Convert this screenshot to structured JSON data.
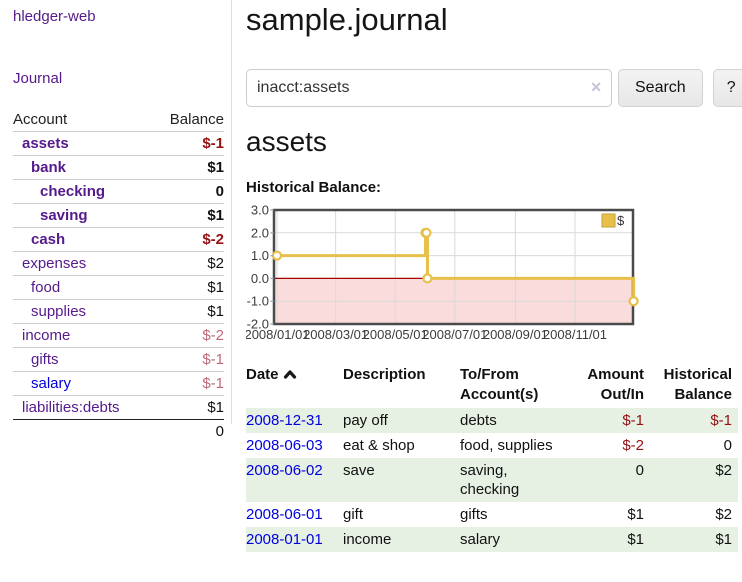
{
  "colors": {
    "link_purple": "#551a8b",
    "link_blue": "#0000dd",
    "negative_dark": "#941114",
    "negative_light": "#c0697a",
    "row_green": "#e6f0e3",
    "chart_line": "#e7c04a",
    "chart_zero_line": "#a40000",
    "chart_negative_fill": "#fbdcdc",
    "chart_grid": "#d9d9d9",
    "chart_border": "#4a4a4a",
    "chart_text": "#3c3c3c"
  },
  "sidebar": {
    "app_title": "hledger-web",
    "journal_link": "Journal",
    "accounts_table": {
      "headers": {
        "account": "Account",
        "balance": "Balance"
      },
      "rows": [
        {
          "account": "assets",
          "indent": 1,
          "bold": true,
          "balance": "$-1",
          "balance_style": "neg-dark"
        },
        {
          "account": "bank",
          "indent": 2,
          "bold": true,
          "balance": "$1",
          "balance_style": "pos"
        },
        {
          "account": "checking",
          "indent": 3,
          "bold": true,
          "balance": "0",
          "balance_style": "pos"
        },
        {
          "account": "saving",
          "indent": 3,
          "bold": true,
          "balance": "$1",
          "balance_style": "pos"
        },
        {
          "account": "cash",
          "indent": 2,
          "bold": true,
          "balance": "$-2",
          "balance_style": "neg-dark"
        },
        {
          "account": "expenses",
          "indent": 1,
          "bold": false,
          "balance": "$2",
          "balance_style": "pos"
        },
        {
          "account": "food",
          "indent": 2,
          "bold": false,
          "balance": "$1",
          "balance_style": "pos"
        },
        {
          "account": "supplies",
          "indent": 2,
          "bold": false,
          "balance": "$1",
          "balance_style": "pos"
        },
        {
          "account": "income",
          "indent": 1,
          "bold": false,
          "balance": "$-2",
          "balance_style": "neg-light"
        },
        {
          "account": "gifts",
          "indent": 2,
          "bold": false,
          "balance": "$-1",
          "balance_style": "neg-light"
        },
        {
          "account": "salary",
          "indent": 2,
          "bold": false,
          "link_color": "blue",
          "balance": "$-1",
          "balance_style": "neg-light"
        },
        {
          "account": "liabilities:debts",
          "indent": 1,
          "bold": false,
          "balance": "$1",
          "balance_style": "pos"
        }
      ],
      "total": "0"
    }
  },
  "main": {
    "title": "sample.journal",
    "search": {
      "value": "inacct:assets",
      "clear_icon": "✕",
      "button_label": "Search",
      "help_label": "?"
    },
    "account_heading": "assets",
    "chart_label": "Historical Balance:"
  },
  "chart_data": {
    "type": "line",
    "style": "step-after",
    "title": "Historical Balance",
    "series": [
      {
        "name": "$",
        "points": [
          [
            "2008-01-01",
            1
          ],
          [
            "2008-06-01",
            2
          ],
          [
            "2008-06-02",
            2
          ],
          [
            "2008-06-03",
            0
          ],
          [
            "2008-12-31",
            -1
          ]
        ]
      }
    ],
    "ylim": [
      -2.0,
      3.0
    ],
    "yticks": [
      "3.0",
      "2.0",
      "1.0",
      "0.0",
      "-1.0",
      "-2.0"
    ],
    "xticks": [
      "2008/01/01",
      "2008/03/01",
      "2008/05/01",
      "2008/07/01",
      "2008/09/01",
      "2008/11/01"
    ],
    "legend": {
      "label": "$",
      "position": "top-right"
    },
    "grid": true,
    "negative_region_shaded": true
  },
  "register": {
    "headers": [
      "Date",
      "Description",
      "To/From Account(s)",
      "Amount Out/In",
      "Historical Balance"
    ],
    "sort_icon": "chevron-up",
    "rows": [
      {
        "date": "2008-12-31",
        "description": "pay off",
        "accounts": "debts",
        "amount": "$-1",
        "amount_neg": true,
        "balance": "$-1",
        "balance_neg": true,
        "shaded": true
      },
      {
        "date": "2008-06-03",
        "description": "eat & shop",
        "accounts": "food, supplies",
        "amount": "$-2",
        "amount_neg": true,
        "balance": "0",
        "balance_neg": false,
        "shaded": false
      },
      {
        "date": "2008-06-02",
        "description": "save",
        "accounts": "saving, checking",
        "amount": "0",
        "amount_neg": false,
        "balance": "$2",
        "balance_neg": false,
        "shaded": true
      },
      {
        "date": "2008-06-01",
        "description": "gift",
        "accounts": "gifts",
        "amount": "$1",
        "amount_neg": false,
        "balance": "$2",
        "balance_neg": false,
        "shaded": false
      },
      {
        "date": "2008-01-01",
        "description": "income",
        "accounts": "salary",
        "amount": "$1",
        "amount_neg": false,
        "balance": "$1",
        "balance_neg": false,
        "shaded": true
      }
    ]
  }
}
